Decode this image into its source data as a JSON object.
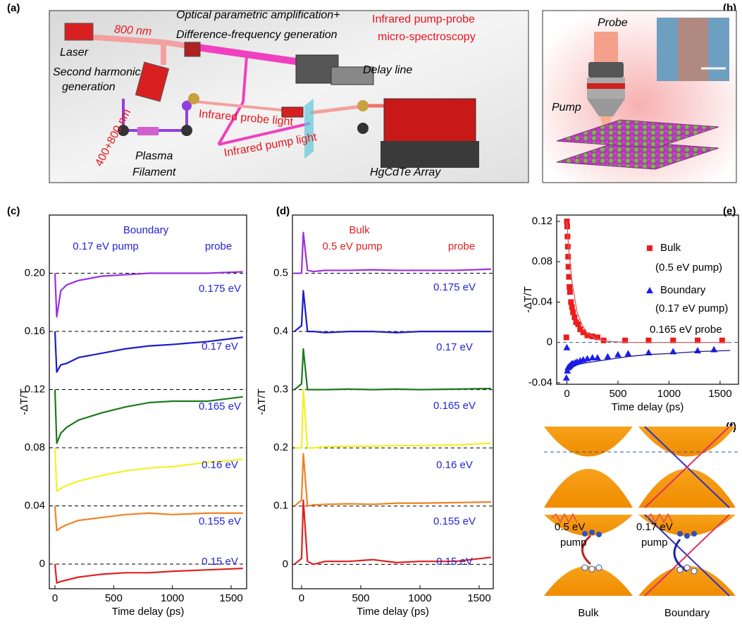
{
  "panel_labels": [
    "(a)",
    "(b)",
    "(c)",
    "(d)",
    "(e)",
    "(f)"
  ],
  "setup": {
    "wavelength": "800 nm",
    "laser": "Laser",
    "opa_1": "Optical parametric amplification+",
    "opa_2": "Difference-frequency generation",
    "title_1": "Infrared pump-probe",
    "title_2": "micro-spectroscopy",
    "shg_1": "Second harmonic",
    "shg_2": "generation",
    "delay": "Delay line",
    "mixed": "400+800 nm",
    "probe_light": "Infrared probe light",
    "pump_light": "Infrared pump light",
    "plasma_1": "Plasma",
    "plasma_2": "Filament",
    "detector": "HgCdTe Array"
  },
  "sample": {
    "probe": "Probe",
    "pump": "Pump"
  },
  "bands": {
    "bulk_energy": "0.5 eV",
    "bulk_pump": "pump",
    "boundary_energy": "0.17 eV",
    "boundary_pump": "pump",
    "bulk_title": "Bulk",
    "boundary_title": "Boundary"
  },
  "chart_data": [
    {
      "type": "line",
      "annotations": [
        "Boundary",
        "0.17 eV pump",
        "probe"
      ],
      "annotation_color": "#2424d6",
      "label_color": "#2424d6",
      "x_label": "Time delay (ps)",
      "y_label": "-ΔT/T",
      "xlim": [
        -48,
        1632
      ],
      "ylim": [
        -0.017,
        0.24
      ],
      "xticks": [
        0,
        500,
        1000,
        1500
      ],
      "yticks": [
        0,
        0.04,
        0.08,
        0.12,
        0.16,
        {
          "value": 0.2,
          "label": "0.20"
        }
      ],
      "grid": "dashed",
      "x": [
        0,
        15,
        50,
        100,
        200,
        400,
        600,
        800,
        1000,
        1300,
        1600
      ],
      "series": [
        {
          "name": "0.175 eV",
          "color": "#9b2fe0",
          "values": [
            0.2,
            0.17,
            0.188,
            0.192,
            0.195,
            0.198,
            0.199,
            0.2,
            0.2,
            0.2,
            0.201
          ]
        },
        {
          "name": "0.17 eV",
          "color": "#1c1cc8",
          "values": [
            0.16,
            0.132,
            0.137,
            0.138,
            0.142,
            0.145,
            0.148,
            0.15,
            0.151,
            0.153,
            0.156
          ]
        },
        {
          "name": "0.165 eV",
          "color": "#1c7a1c",
          "values": [
            0.12,
            0.083,
            0.09,
            0.094,
            0.099,
            0.104,
            0.108,
            0.111,
            0.112,
            0.112,
            0.115
          ]
        },
        {
          "name": "0.16 eV",
          "color": "#f2f224",
          "values": [
            0.08,
            0.05,
            0.052,
            0.054,
            0.057,
            0.061,
            0.064,
            0.066,
            0.067,
            0.07,
            0.072
          ]
        },
        {
          "name": "0.155 eV",
          "color": "#f08224",
          "values": [
            0.04,
            0.023,
            0.025,
            0.027,
            0.03,
            0.032,
            0.034,
            0.035,
            0.034,
            0.035,
            0.035
          ]
        },
        {
          "name": "0.15 eV",
          "color": "#e02020",
          "values": [
            0,
            -0.013,
            -0.012,
            -0.011,
            -0.009,
            -0.007,
            -0.006,
            -0.006,
            -0.005,
            -0.004,
            -0.003
          ]
        }
      ]
    },
    {
      "type": "line",
      "annotations": [
        "Bulk",
        "0.5 eV pump",
        "probe"
      ],
      "annotation_color": "#e02020",
      "label_color": "#2424d6",
      "x_label": "Time delay (ps)",
      "y_label": "-ΔT/T",
      "xlim": [
        -77,
        1619
      ],
      "ylim": [
        -0.042,
        0.6
      ],
      "xticks": [
        0,
        500,
        1000,
        1500
      ],
      "yticks": [
        0,
        0.1,
        0.2,
        0.3,
        0.4,
        0.5
      ],
      "grid": "dashed",
      "x": [
        -60,
        0,
        15,
        50,
        100,
        200,
        400,
        600,
        800,
        1000,
        1300,
        1600
      ],
      "series": [
        {
          "name": "0.175 eV",
          "color": "#9b2fe0",
          "values": [
            0.5,
            0.5,
            0.57,
            0.505,
            0.503,
            0.505,
            0.505,
            0.506,
            0.505,
            0.505,
            0.505,
            0.507
          ]
        },
        {
          "name": "0.17 eV",
          "color": "#1c1cc8",
          "values": [
            0.4,
            0.41,
            0.47,
            0.4,
            0.4,
            0.398,
            0.4,
            0.4,
            0.398,
            0.4,
            0.4,
            0.4
          ]
        },
        {
          "name": "0.165 eV",
          "color": "#1c7a1c",
          "values": [
            0.3,
            0.31,
            0.37,
            0.3,
            0.3,
            0.3,
            0.301,
            0.3,
            0.301,
            0.3,
            0.301,
            0.302
          ]
        },
        {
          "name": "0.16 eV",
          "color": "#f2f224",
          "values": [
            0.2,
            0.2,
            0.3,
            0.2,
            0.2,
            0.202,
            0.203,
            0.203,
            0.204,
            0.204,
            0.205,
            0.208
          ]
        },
        {
          "name": "0.155 eV",
          "color": "#f08224",
          "values": [
            0.1,
            0.11,
            0.19,
            0.1,
            0.102,
            0.103,
            0.104,
            0.103,
            0.105,
            0.105,
            0.106,
            0.107
          ]
        },
        {
          "name": "0.15 eV",
          "color": "#e02020",
          "values": [
            0,
            0.01,
            0.11,
            0.005,
            0,
            0.005,
            0.005,
            0.008,
            0.003,
            0.005,
            0.005,
            0.012
          ]
        }
      ]
    },
    {
      "type": "scatter",
      "annotations": [
        "(0.5 eV pump)",
        "(0.17 eV pump)",
        "0.165 eV probe"
      ],
      "annotation_color": "#000000",
      "x_label": "Time delay (ps)",
      "y_label": "-ΔT/T",
      "xlim": [
        -100,
        1680
      ],
      "ylim": [
        -0.0415,
        0.1263
      ],
      "xticks": [
        0,
        500,
        1000,
        1500
      ],
      "yticks": [
        -0.04,
        0,
        0.04,
        0.08,
        0.12
      ],
      "grid": "zero",
      "legend": "upper right",
      "series": [
        {
          "name": "Bulk",
          "color": "#ee1c1c",
          "marker": "square",
          "x": [
            -5,
            0,
            3,
            6,
            9,
            12,
            15,
            20,
            25,
            30,
            40,
            50,
            60,
            75,
            90,
            110,
            130,
            160,
            200,
            250,
            300,
            360,
            570,
            800,
            1040,
            1280,
            1520
          ],
          "values": [
            0.005,
            0.12,
            0.115,
            0.105,
            0.095,
            0.085,
            0.075,
            0.065,
            0.055,
            0.05,
            0.04,
            0.035,
            0.03,
            0.025,
            0.02,
            0.018,
            0.013,
            0.01,
            0.007,
            0.006,
            0.005,
            0.002,
            0.002,
            0.002,
            0.002,
            0.002,
            0.002
          ]
        },
        {
          "name": "Boundary",
          "color": "#1c1cee",
          "marker": "triangle",
          "x": [
            -5,
            0,
            5,
            10,
            20,
            30,
            40,
            50,
            60,
            80,
            100,
            130,
            160,
            200,
            250,
            300,
            400,
            500,
            600,
            800,
            1040,
            1280,
            1440
          ],
          "values": [
            -0.035,
            -0.005,
            -0.028,
            -0.025,
            -0.024,
            -0.023,
            -0.022,
            -0.021,
            -0.021,
            -0.02,
            -0.019,
            -0.018,
            -0.017,
            -0.016,
            -0.015,
            -0.015,
            -0.014,
            -0.012,
            -0.011,
            -0.01,
            -0.009,
            -0.008,
            -0.007
          ]
        },
        {
          "color": "#c86464",
          "style": "line",
          "x": [
            0,
            20,
            50,
            100,
            150,
            200,
            300,
            400,
            600,
            1000,
            1600
          ],
          "values": [
            0.12,
            0.09,
            0.06,
            0.03,
            0.017,
            0.009,
            0.003,
            0.001,
            0,
            0,
            0
          ]
        },
        {
          "color": "#1a1a8a",
          "style": "line",
          "x": [
            0,
            50,
            100,
            200,
            400,
            600,
            800,
            1000,
            1300,
            1600
          ],
          "values": [
            -0.026,
            -0.024,
            -0.022,
            -0.02,
            -0.017,
            -0.014,
            -0.012,
            -0.011,
            -0.009,
            -0.008
          ]
        }
      ]
    }
  ]
}
